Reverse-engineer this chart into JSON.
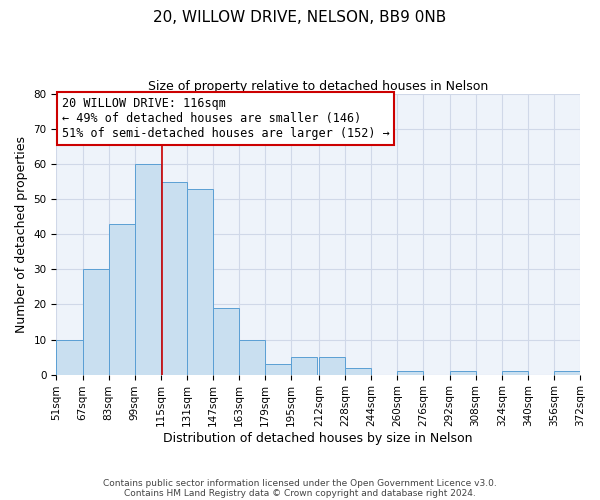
{
  "title": "20, WILLOW DRIVE, NELSON, BB9 0NB",
  "subtitle": "Size of property relative to detached houses in Nelson",
  "xlabel": "Distribution of detached houses by size in Nelson",
  "ylabel": "Number of detached properties",
  "bin_edges": [
    51,
    67,
    83,
    99,
    115,
    131,
    147,
    163,
    179,
    195,
    212,
    228,
    244,
    260,
    276,
    292,
    308,
    324,
    340,
    356,
    372
  ],
  "bar_heights": [
    10,
    30,
    43,
    60,
    55,
    53,
    19,
    10,
    3,
    5,
    5,
    2,
    0,
    1,
    0,
    1,
    0,
    1,
    0,
    1
  ],
  "bar_color": "#c9dff0",
  "bar_edgecolor": "#5a9fd4",
  "grid_color": "#d0d8e8",
  "background_color": "#eef3fa",
  "property_size": 116,
  "vline_color": "#cc0000",
  "annotation_line1": "20 WILLOW DRIVE: 116sqm",
  "annotation_line2": "← 49% of detached houses are smaller (146)",
  "annotation_line3": "51% of semi-detached houses are larger (152) →",
  "annotation_box_edgecolor": "#cc0000",
  "ylim": [
    0,
    80
  ],
  "yticks": [
    0,
    10,
    20,
    30,
    40,
    50,
    60,
    70,
    80
  ],
  "tick_labels": [
    "51sqm",
    "67sqm",
    "83sqm",
    "99sqm",
    "115sqm",
    "131sqm",
    "147sqm",
    "163sqm",
    "179sqm",
    "195sqm",
    "212sqm",
    "228sqm",
    "244sqm",
    "260sqm",
    "276sqm",
    "292sqm",
    "308sqm",
    "324sqm",
    "340sqm",
    "356sqm",
    "372sqm"
  ],
  "footer_line1": "Contains HM Land Registry data © Crown copyright and database right 2024.",
  "footer_line2": "Contains public sector information licensed under the Open Government Licence v3.0.",
  "title_fontsize": 11,
  "subtitle_fontsize": 9,
  "axis_label_fontsize": 9,
  "tick_fontsize": 7.5,
  "annotation_fontsize": 8.5,
  "footer_fontsize": 6.5
}
